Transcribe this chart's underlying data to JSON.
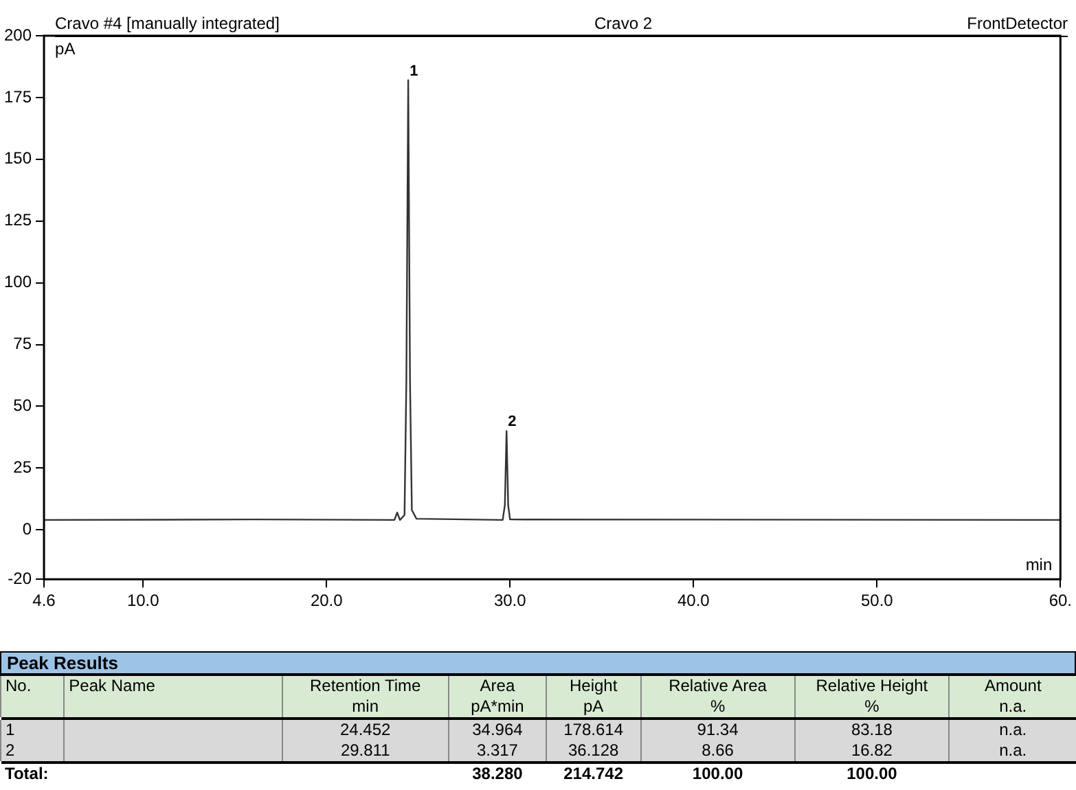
{
  "chart_data": [
    {
      "type": "line",
      "title": "Cravo #4 [manually integrated]",
      "subtitle": "Cravo 2",
      "xlabel": "min",
      "ylabel": "pA",
      "annotations": [
        "FrontDetector",
        {
          "text": "1",
          "x": 24.452,
          "y": 182
        },
        {
          "text": "2",
          "x": 29.811,
          "y": 40
        }
      ],
      "series": [
        {
          "color": "#333333",
          "x": [
            4.6,
            16,
            23.7,
            23.85,
            24.0,
            24.25,
            24.35,
            24.452,
            24.55,
            24.65,
            24.9,
            29.6,
            29.72,
            29.811,
            29.9,
            30.0,
            60
          ],
          "values": [
            4,
            4.2,
            4,
            7,
            4,
            6,
            60,
            182,
            60,
            8,
            4.5,
            4,
            10,
            40,
            10,
            4.2,
            4
          ]
        }
      ],
      "xlim": [
        4.6,
        60
      ],
      "xticks": [
        {
          "value": 4.6,
          "label": "4.6"
        },
        {
          "value": 10,
          "label": "10.0"
        },
        {
          "value": 20,
          "label": "20.0"
        },
        {
          "value": 30,
          "label": "30.0"
        },
        {
          "value": 40,
          "label": "40.0"
        },
        {
          "value": 50,
          "label": "50.0"
        },
        {
          "value": 60,
          "label": "60."
        }
      ],
      "ylim": [
        -20,
        200
      ],
      "yticks": [
        -20,
        0,
        25,
        50,
        75,
        100,
        125,
        150,
        175,
        200
      ],
      "grid": false,
      "legend": false,
      "marker": "none",
      "line_style": "solid"
    },
    {
      "type": "other",
      "annotations": [
        "Peak Results",
        "No.",
        "Peak Name",
        "Retention Time",
        "Area",
        "Height",
        "Relative Area",
        "Relative Height",
        "Amount",
        "min",
        "pA*min",
        "pA",
        "%",
        "%",
        "n.a.",
        "1",
        "24.452",
        "34.964",
        "178.614",
        "91.34",
        "83.18",
        "n.a.",
        "2",
        "29.811",
        "3.317",
        "36.128",
        "8.66",
        "16.82",
        "n.a.",
        "Total:",
        "38.280",
        "214.742",
        "100.00",
        "100.00"
      ]
    }
  ]
}
